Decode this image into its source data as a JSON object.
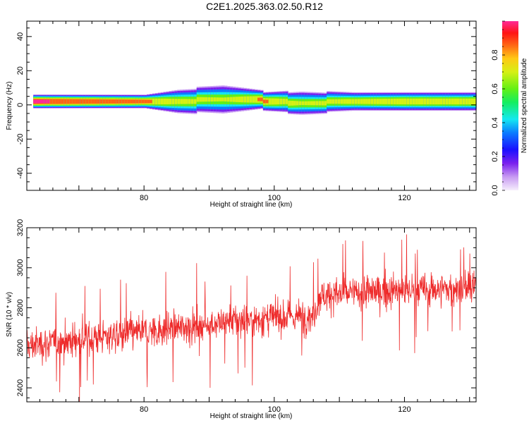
{
  "title": "C2E1.2025.363.02.50.R12",
  "chart_data": [
    {
      "type": "heatmap",
      "xlabel": "Height of straight line (km)",
      "ylabel": "Frequency (Hz)",
      "xlim": [
        62,
        131
      ],
      "ylim": [
        -50,
        49
      ],
      "xticks": [
        80,
        100,
        120
      ],
      "yticks": [
        -40,
        -20,
        0,
        20,
        40
      ],
      "colorbar": {
        "label": "Normalized spectral amplitude",
        "range": [
          0,
          1
        ],
        "ticks": [
          "0.0",
          "0.2",
          "0.4",
          "0.6",
          "0.8"
        ]
      },
      "description_points": [
        {
          "x": 63,
          "band_halfwidth_hz": 2,
          "peak_amp": 1.0
        },
        {
          "x": 80,
          "band_halfwidth_hz": 2,
          "peak_amp": 0.85
        },
        {
          "x": 85,
          "band_halfwidth_hz": 4,
          "peak_amp": 0.75
        },
        {
          "x": 92,
          "band_halfwidth_hz": 5,
          "peak_amp": 0.7
        },
        {
          "x": 98,
          "band_halfwidth_hz": 3,
          "peak_amp": 0.85
        },
        {
          "x": 104,
          "band_halfwidth_hz": 4,
          "peak_amp": 0.7
        },
        {
          "x": 112,
          "band_halfwidth_hz": 3,
          "peak_amp": 0.75
        },
        {
          "x": 120,
          "band_halfwidth_hz": 3,
          "peak_amp": 0.8
        },
        {
          "x": 131,
          "band_halfwidth_hz": 3,
          "peak_amp": 0.8
        }
      ]
    },
    {
      "type": "line",
      "xlabel": "Height of straight line (km)",
      "ylabel": "SNR (10 * v/v)",
      "xlim": [
        62,
        131
      ],
      "ylim": [
        2330,
        3200
      ],
      "xticks": [
        80,
        100,
        120
      ],
      "yticks": [
        2400,
        2600,
        2800,
        3000,
        3200
      ],
      "color": "#ee2a2a",
      "trend": {
        "x": [
          62,
          80,
          90,
          100,
          106,
          107,
          115,
          131
        ],
        "y": [
          2610,
          2680,
          2720,
          2750,
          2760,
          2860,
          2880,
          2900
        ]
      },
      "noise_amplitude": 110
    }
  ]
}
